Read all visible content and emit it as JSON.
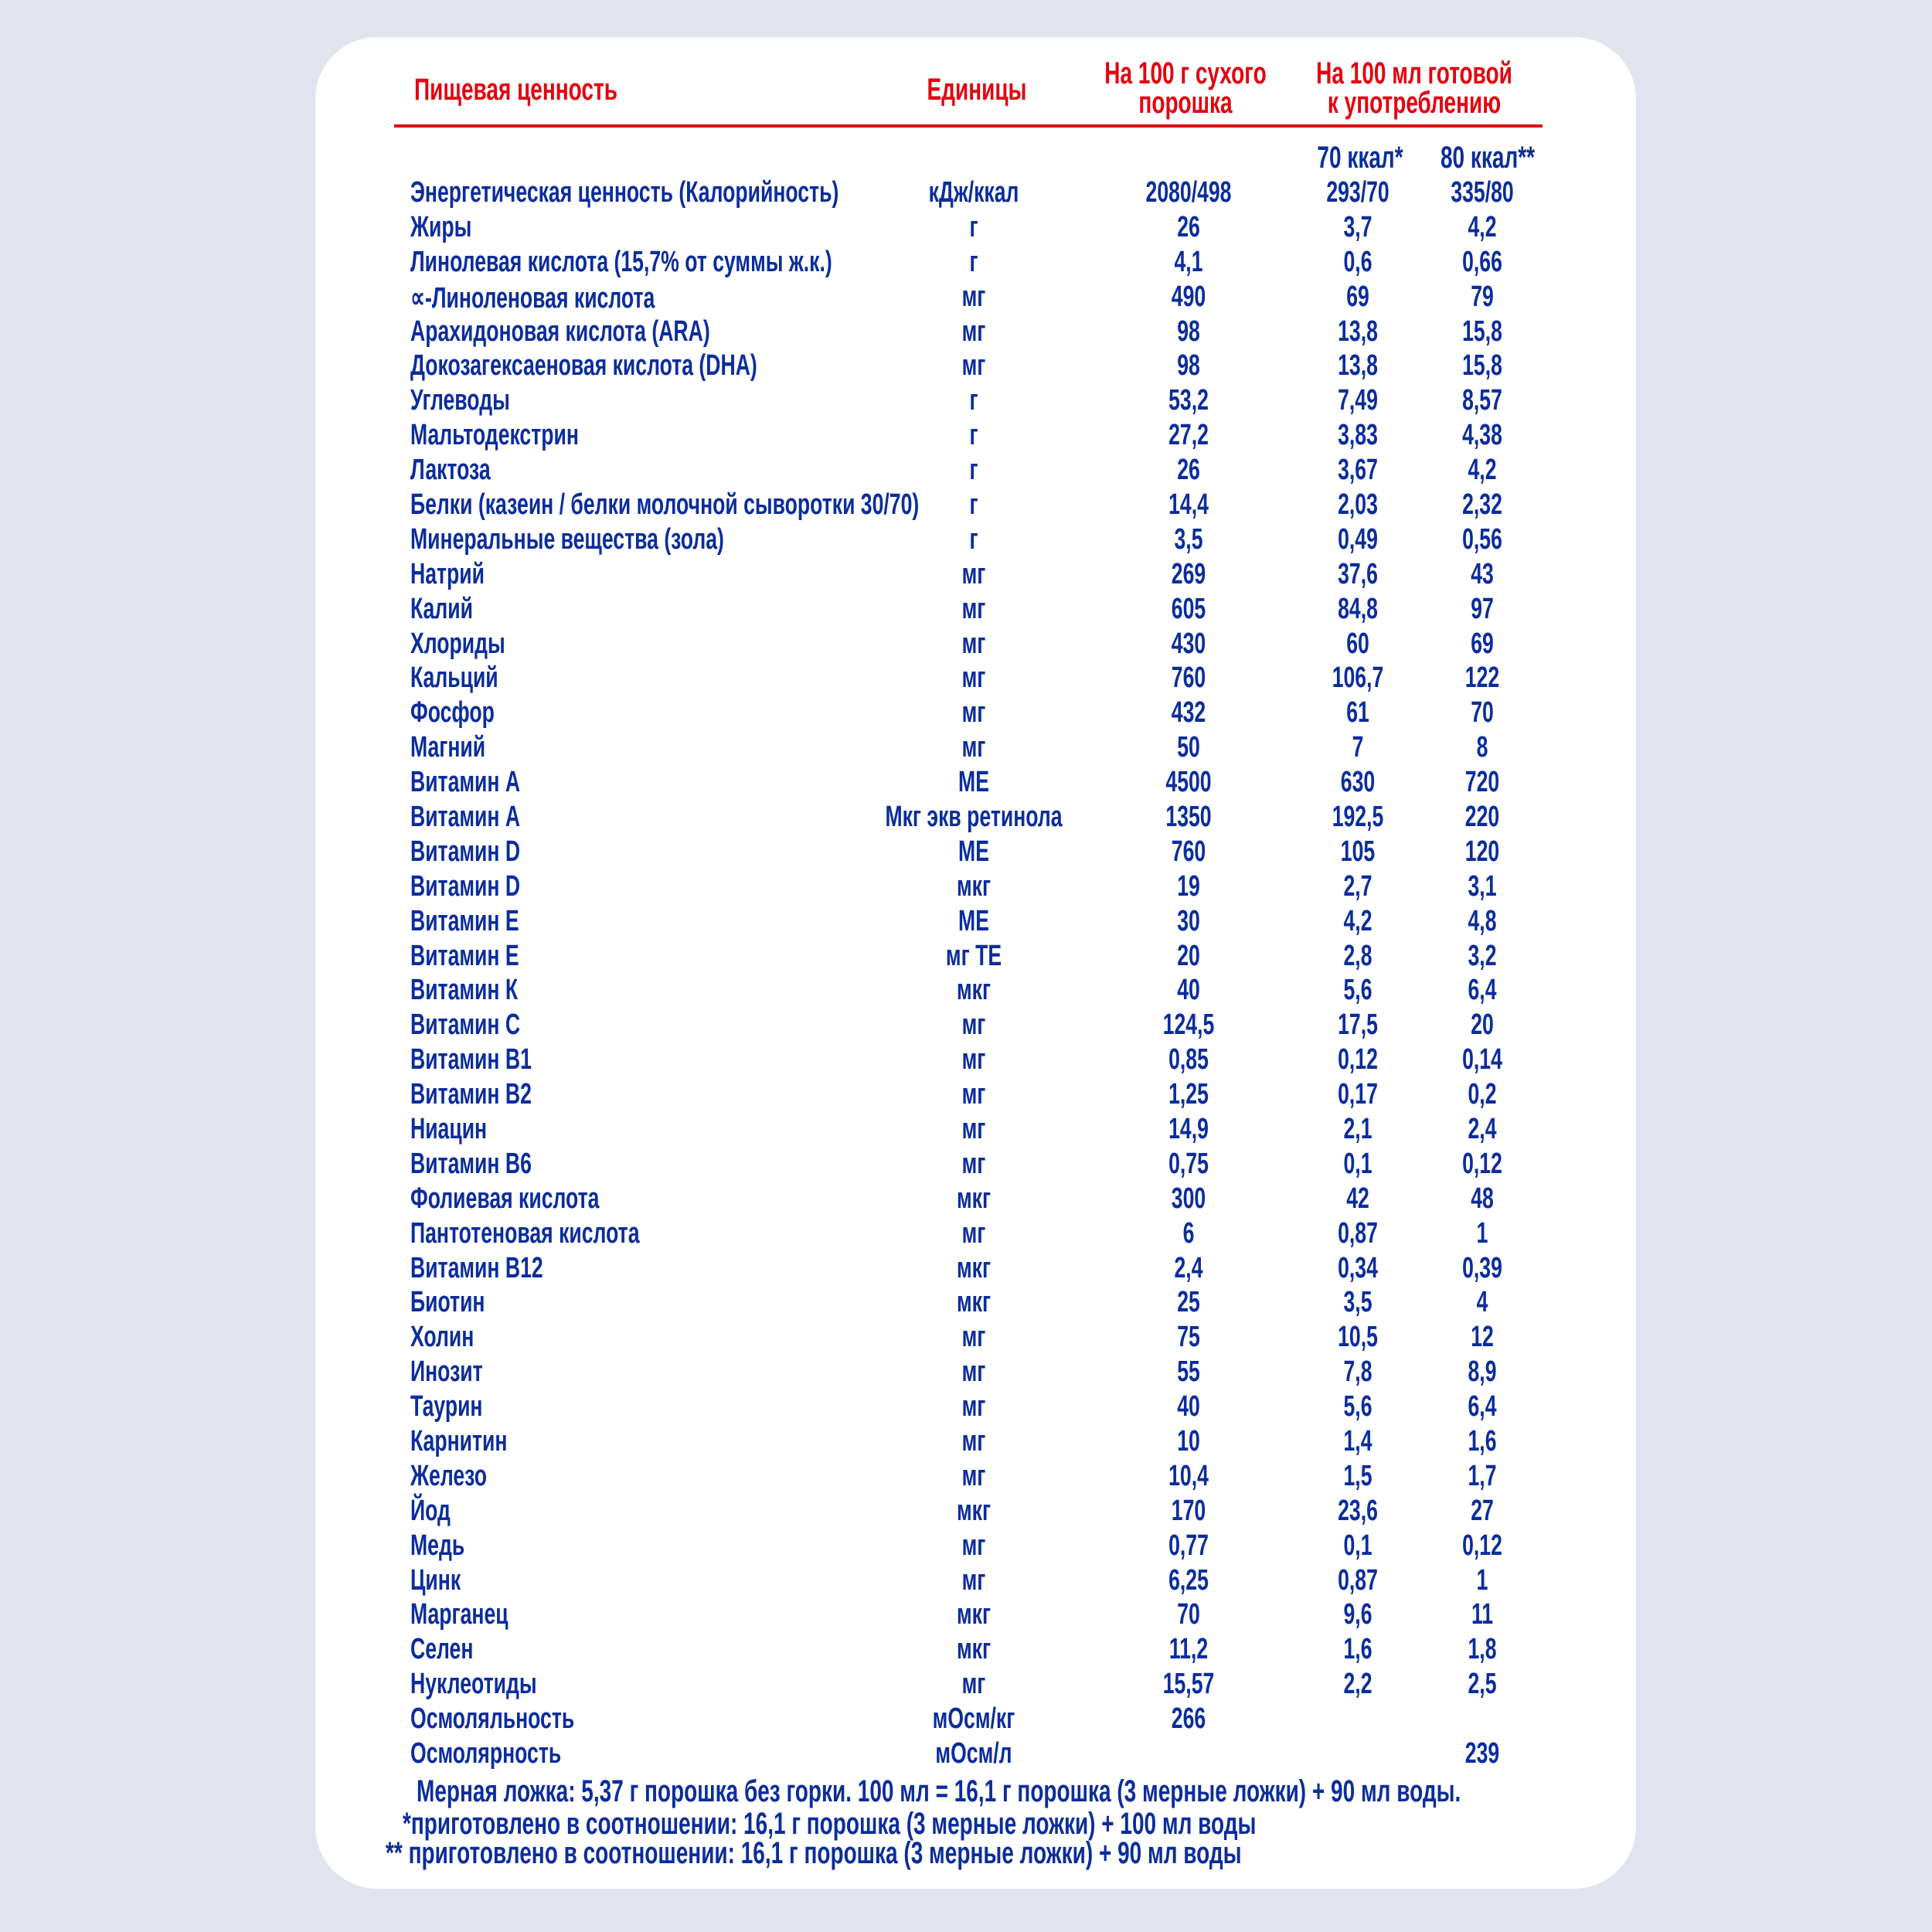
{
  "colors": {
    "header": "#e3000f",
    "text": "#0b2d9c",
    "background": "#e1e4ee",
    "card": "#ffffff"
  },
  "header": {
    "name": "Пищевая ценность",
    "units": "Единицы",
    "col1_line1": "На 100 г сухого",
    "col1_line2": "порошка",
    "col2_line1": "На 100 мл готовой",
    "col2_line2": "к употреблению",
    "sub1": "70 ккал*",
    "sub2": "80 ккал**"
  },
  "rows": [
    {
      "name": "Энергетическая ценность (Калорийность)",
      "unit": "кДж/ккал",
      "v1": "2080/498",
      "v2": "293/70",
      "v3": "335/80"
    },
    {
      "name": "Жиры",
      "unit": "г",
      "v1": "26",
      "v2": "3,7",
      "v3": "4,2"
    },
    {
      "name": "Линолевая кислота (15,7% от суммы ж.к.)",
      "unit": "г",
      "v1": "4,1",
      "v2": "0,6",
      "v3": "0,66"
    },
    {
      "name": "∝-Линоленовая кислота",
      "unit": "мг",
      "v1": "490",
      "v2": "69",
      "v3": "79"
    },
    {
      "name": "Арахидоновая кислота (ARA)",
      "unit": "мг",
      "v1": "98",
      "v2": "13,8",
      "v3": "15,8"
    },
    {
      "name": "Докозагексаеновая кислота (DHA)",
      "unit": "мг",
      "v1": "98",
      "v2": "13,8",
      "v3": "15,8"
    },
    {
      "name": "Углеводы",
      "unit": "г",
      "v1": "53,2",
      "v2": "7,49",
      "v3": "8,57"
    },
    {
      "name": "Мальтодекстрин",
      "unit": "г",
      "v1": "27,2",
      "v2": "3,83",
      "v3": "4,38"
    },
    {
      "name": "Лактоза",
      "unit": "г",
      "v1": "26",
      "v2": "3,67",
      "v3": "4,2"
    },
    {
      "name": "Белки (казеин / белки молочной сыворотки 30/70)",
      "unit": "г",
      "v1": "14,4",
      "v2": "2,03",
      "v3": "2,32"
    },
    {
      "name": "Минеральные вещества (зола)",
      "unit": "г",
      "v1": "3,5",
      "v2": "0,49",
      "v3": "0,56"
    },
    {
      "name": "Натрий",
      "unit": "мг",
      "v1": "269",
      "v2": "37,6",
      "v3": "43"
    },
    {
      "name": "Калий",
      "unit": "мг",
      "v1": "605",
      "v2": "84,8",
      "v3": "97"
    },
    {
      "name": "Хлориды",
      "unit": "мг",
      "v1": "430",
      "v2": "60",
      "v3": "69"
    },
    {
      "name": "Кальций",
      "unit": "мг",
      "v1": "760",
      "v2": "106,7",
      "v3": "122"
    },
    {
      "name": "Фосфор",
      "unit": "мг",
      "v1": "432",
      "v2": "61",
      "v3": "70"
    },
    {
      "name": "Магний",
      "unit": "мг",
      "v1": "50",
      "v2": "7",
      "v3": "8"
    },
    {
      "name": "Витамин А",
      "unit": "МЕ",
      "v1": "4500",
      "v2": "630",
      "v3": "720"
    },
    {
      "name": "Витамин А",
      "unit": "Мкг экв ретинола",
      "v1": "1350",
      "v2": "192,5",
      "v3": "220"
    },
    {
      "name": "Витамин D",
      "unit": "МЕ",
      "v1": "760",
      "v2": "105",
      "v3": "120"
    },
    {
      "name": "Витамин D",
      "unit": "мкг",
      "v1": "19",
      "v2": "2,7",
      "v3": "3,1"
    },
    {
      "name": "Витамин Е",
      "unit": "МЕ",
      "v1": "30",
      "v2": "4,2",
      "v3": "4,8"
    },
    {
      "name": "Витамин Е",
      "unit": "мг ТЕ",
      "v1": "20",
      "v2": "2,8",
      "v3": "3,2"
    },
    {
      "name": "Витамин К",
      "unit": "мкг",
      "v1": "40",
      "v2": "5,6",
      "v3": "6,4"
    },
    {
      "name": "Витамин С",
      "unit": "мг",
      "v1": "124,5",
      "v2": "17,5",
      "v3": "20"
    },
    {
      "name": "Витамин В1",
      "unit": "мг",
      "v1": "0,85",
      "v2": "0,12",
      "v3": "0,14"
    },
    {
      "name": "Витамин В2",
      "unit": "мг",
      "v1": "1,25",
      "v2": "0,17",
      "v3": "0,2"
    },
    {
      "name": "Ниацин",
      "unit": "мг",
      "v1": "14,9",
      "v2": "2,1",
      "v3": "2,4"
    },
    {
      "name": "Витамин В6",
      "unit": "мг",
      "v1": "0,75",
      "v2": "0,1",
      "v3": "0,12"
    },
    {
      "name": "Фолиевая кислота",
      "unit": "мкг",
      "v1": "300",
      "v2": "42",
      "v3": "48"
    },
    {
      "name": "Пантотеновая кислота",
      "unit": "мг",
      "v1": "6",
      "v2": "0,87",
      "v3": "1"
    },
    {
      "name": "Витамин В12",
      "unit": "мкг",
      "v1": "2,4",
      "v2": "0,34",
      "v3": "0,39"
    },
    {
      "name": "Биотин",
      "unit": "мкг",
      "v1": "25",
      "v2": "3,5",
      "v3": "4"
    },
    {
      "name": "Холин",
      "unit": "мг",
      "v1": "75",
      "v2": "10,5",
      "v3": "12"
    },
    {
      "name": "Инозит",
      "unit": "мг",
      "v1": "55",
      "v2": "7,8",
      "v3": "8,9"
    },
    {
      "name": "Таурин",
      "unit": "мг",
      "v1": "40",
      "v2": "5,6",
      "v3": "6,4"
    },
    {
      "name": "Карнитин",
      "unit": "мг",
      "v1": "10",
      "v2": "1,4",
      "v3": "1,6"
    },
    {
      "name": "Железо",
      "unit": "мг",
      "v1": "10,4",
      "v2": "1,5",
      "v3": "1,7"
    },
    {
      "name": "Йод",
      "unit": "мкг",
      "v1": "170",
      "v2": "23,6",
      "v3": "27"
    },
    {
      "name": "Медь",
      "unit": "мг",
      "v1": "0,77",
      "v2": "0,1",
      "v3": "0,12"
    },
    {
      "name": "Цинк",
      "unit": "мг",
      "v1": "6,25",
      "v2": "0,87",
      "v3": "1"
    },
    {
      "name": "Марганец",
      "unit": "мкг",
      "v1": "70",
      "v2": "9,6",
      "v3": "11"
    },
    {
      "name": "Селен",
      "unit": "мкг",
      "v1": "11,2",
      "v2": "1,6",
      "v3": "1,8"
    },
    {
      "name": "Нуклеотиды",
      "unit": "мг",
      "v1": "15,57",
      "v2": "2,2",
      "v3": "2,5"
    },
    {
      "name": "Осмоляльность",
      "unit": "мОсм/кг",
      "v1": "266",
      "v2": "",
      "v3": ""
    },
    {
      "name": "Осмолярность",
      "unit": "мОсм/л",
      "v1": "",
      "v2": "",
      "v3": "239"
    }
  ],
  "footer": {
    "line1": "Мерная ложка: 5,37 г порошка без горки. 100 мл = 16,1 г порошка (3 мерные ложки) + 90 мл воды.",
    "line2": "*приготовлено в соотношении: 16,1 г порошка (3 мерные ложки) + 100 мл воды",
    "line3": "** приготовлено в соотношении: 16,1 г порошка (3 мерные ложки) + 90 мл воды"
  }
}
